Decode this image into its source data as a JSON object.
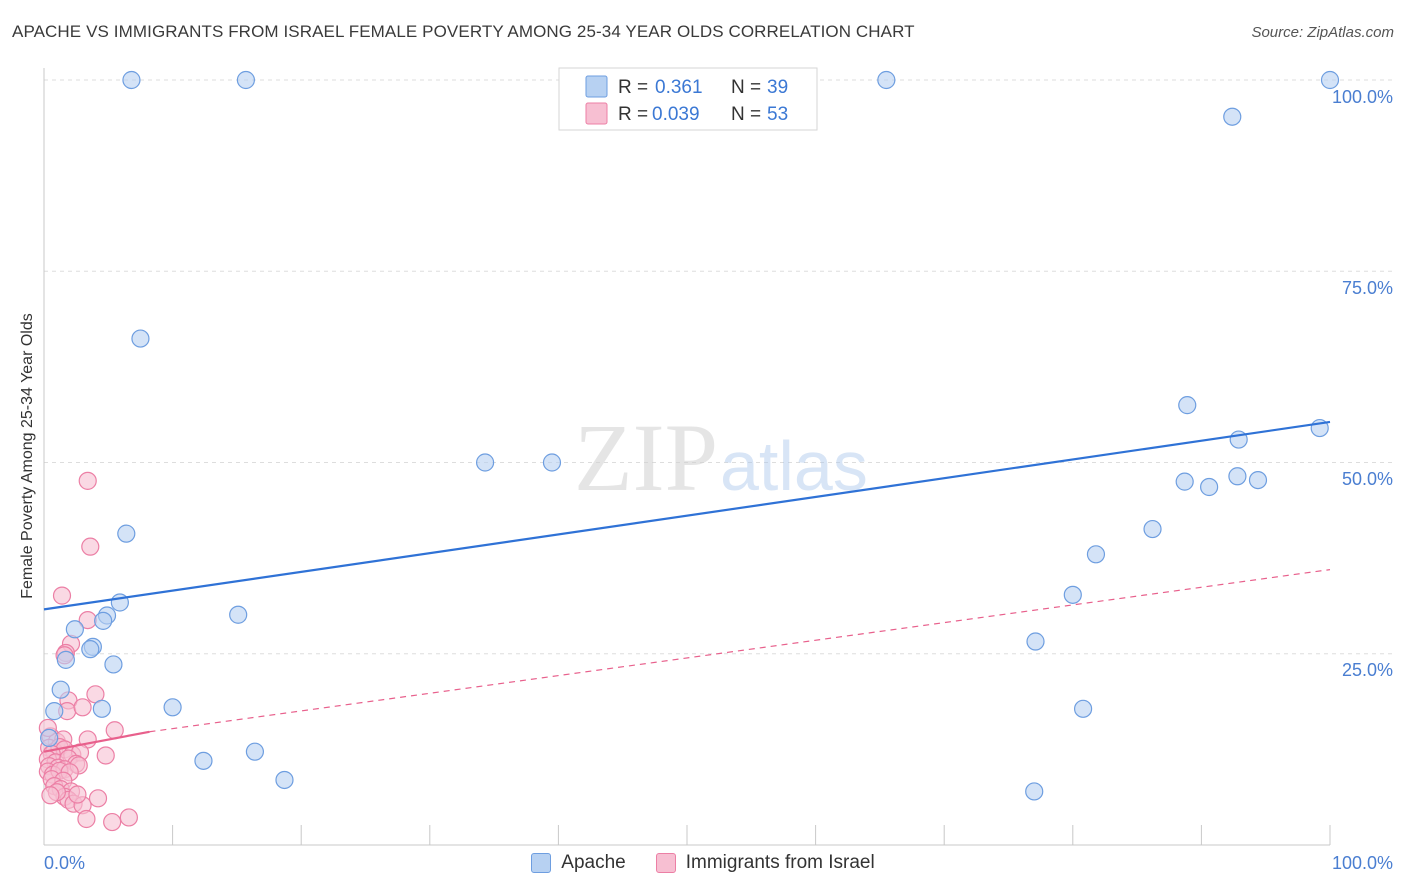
{
  "chart_data": {
    "type": "scatter",
    "title": "APACHE VS IMMIGRANTS FROM ISRAEL FEMALE POVERTY AMONG 25-34 YEAR OLDS CORRELATION CHART",
    "source": "Source: ZipAtlas.com",
    "xlabel": "",
    "ylabel": "Female Poverty Among 25-34 Year Olds",
    "xlim": [
      0,
      100
    ],
    "ylim": [
      0,
      100
    ],
    "x_tick_labels": [
      "0.0%",
      "100.0%"
    ],
    "y_tick_labels": [
      "100.0%",
      "75.0%",
      "50.0%",
      "25.0%"
    ],
    "y_tick_values": [
      100,
      75,
      50,
      25
    ],
    "grid": true,
    "watermark": {
      "zip": "ZIP",
      "atlas": "atlas"
    },
    "colors": {
      "apache_fill": "#b7d1f2",
      "apache_stroke": "#6e9ee0",
      "apache_line": "#2f72d6",
      "israel_fill": "#f7bfd2",
      "israel_stroke": "#ec7fa5",
      "israel_line": "#e8608c",
      "tick_text": "#4a7ed1",
      "grid": "#dddddd"
    },
    "legend": [
      {
        "r_label": "R =",
        "r_value": "0.361",
        "n_label": "N =",
        "n_value": "39"
      },
      {
        "r_label": "R =",
        "r_value": "0.039",
        "n_label": "N =",
        "n_value": "53"
      }
    ],
    "series": [
      {
        "name": "Apache",
        "trend": {
          "x0": 0,
          "y0": 30.8,
          "x1": 100,
          "y1": 55.3
        },
        "points": [
          [
            6.8,
            100
          ],
          [
            15.7,
            100
          ],
          [
            65.5,
            100
          ],
          [
            100,
            100
          ],
          [
            92.4,
            95.2
          ],
          [
            7.5,
            66.2
          ],
          [
            88.9,
            57.5
          ],
          [
            99.2,
            54.5
          ],
          [
            92.9,
            53.0
          ],
          [
            34.3,
            50.0
          ],
          [
            39.5,
            50.0
          ],
          [
            88.7,
            47.5
          ],
          [
            90.6,
            46.8
          ],
          [
            92.8,
            48.2
          ],
          [
            94.4,
            47.7
          ],
          [
            86.2,
            41.3
          ],
          [
            6.4,
            40.7
          ],
          [
            81.8,
            38.0
          ],
          [
            80.0,
            32.7
          ],
          [
            5.9,
            31.7
          ],
          [
            15.1,
            30.1
          ],
          [
            4.9,
            30.0
          ],
          [
            4.6,
            29.3
          ],
          [
            2.4,
            28.2
          ],
          [
            77.1,
            26.6
          ],
          [
            3.8,
            25.9
          ],
          [
            3.6,
            25.6
          ],
          [
            1.7,
            24.2
          ],
          [
            5.4,
            23.6
          ],
          [
            1.3,
            20.3
          ],
          [
            10.0,
            18.0
          ],
          [
            0.8,
            17.5
          ],
          [
            4.5,
            17.8
          ],
          [
            80.8,
            17.8
          ],
          [
            0.4,
            14.0
          ],
          [
            16.4,
            12.2
          ],
          [
            12.4,
            11.0
          ],
          [
            18.7,
            8.5
          ],
          [
            77.0,
            7.0
          ]
        ]
      },
      {
        "name": "Immigrants from Israel",
        "trend_solid": {
          "x0": 0,
          "y0": 12.2,
          "x1": 8.2,
          "y1": 14.8
        },
        "trend_dashed": {
          "x0": 8.2,
          "y0": 14.8,
          "x1": 100,
          "y1": 36.0
        },
        "points": [
          [
            3.4,
            47.6
          ],
          [
            3.6,
            39.0
          ],
          [
            1.4,
            32.6
          ],
          [
            3.4,
            29.4
          ],
          [
            2.1,
            26.3
          ],
          [
            1.7,
            25.1
          ],
          [
            1.6,
            24.8
          ],
          [
            4.0,
            19.7
          ],
          [
            1.9,
            18.9
          ],
          [
            1.8,
            17.5
          ],
          [
            3.0,
            18.0
          ],
          [
            5.5,
            15.0
          ],
          [
            0.5,
            14.2
          ],
          [
            1.0,
            13.5
          ],
          [
            1.5,
            13.8
          ],
          [
            3.4,
            13.8
          ],
          [
            0.4,
            12.7
          ],
          [
            0.8,
            12.2
          ],
          [
            1.2,
            12.8
          ],
          [
            1.6,
            12.5
          ],
          [
            0.6,
            11.9
          ],
          [
            2.2,
            11.8
          ],
          [
            2.8,
            12.1
          ],
          [
            4.8,
            11.7
          ],
          [
            0.3,
            11.2
          ],
          [
            0.9,
            10.8
          ],
          [
            1.9,
            11.3
          ],
          [
            2.5,
            10.6
          ],
          [
            0.4,
            10.3
          ],
          [
            1.1,
            10.1
          ],
          [
            1.6,
            9.9
          ],
          [
            2.7,
            10.4
          ],
          [
            0.3,
            9.6
          ],
          [
            0.7,
            9.2
          ],
          [
            1.2,
            9.7
          ],
          [
            2.0,
            9.5
          ],
          [
            0.6,
            8.6
          ],
          [
            1.5,
            8.4
          ],
          [
            0.8,
            7.7
          ],
          [
            1.3,
            7.3
          ],
          [
            2.1,
            7.0
          ],
          [
            1.6,
            6.3
          ],
          [
            1.9,
            5.9
          ],
          [
            2.3,
            5.4
          ],
          [
            3.0,
            5.2
          ],
          [
            4.2,
            6.1
          ],
          [
            2.6,
            6.6
          ],
          [
            1.0,
            6.9
          ],
          [
            0.5,
            6.5
          ],
          [
            3.3,
            3.4
          ],
          [
            5.3,
            3.0
          ],
          [
            6.6,
            3.6
          ],
          [
            0.3,
            15.3
          ]
        ]
      }
    ]
  }
}
